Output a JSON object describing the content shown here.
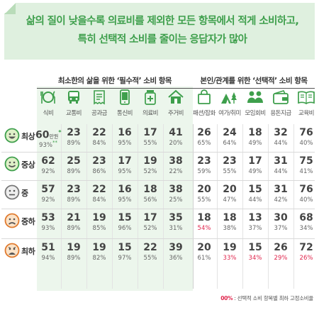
{
  "title": {
    "line1": "삶의 질이 낮을수록 의료비를 제외한 모든 항목에서 적게 소비하고,",
    "line2": "특히 선택적 소비를 줄이는 응답자가 많아"
  },
  "group_headers": {
    "essential": "최소한의 삶을 위한 ‘필수적’ 소비 항목",
    "optional": "본인/관계를 위한 ‘선택적’ 소비 항목"
  },
  "columns": [
    {
      "label": "식비",
      "icon": "food-icon"
    },
    {
      "label": "교통비",
      "icon": "bus-icon"
    },
    {
      "label": "공과금",
      "icon": "receipt-icon"
    },
    {
      "label": "통신비",
      "icon": "phone-icon"
    },
    {
      "label": "의료비",
      "icon": "medicine-icon"
    },
    {
      "label": "주거비",
      "icon": "house-icon"
    },
    {
      "label": "패션/잡화",
      "icon": "shopping-bag-icon"
    },
    {
      "label": "여가/취미",
      "icon": "camping-icon"
    },
    {
      "label": "모임회비",
      "icon": "people-icon"
    },
    {
      "label": "용돈지급",
      "icon": "wallet-icon"
    },
    {
      "label": "교육비",
      "icon": "book-icon"
    }
  ],
  "rows": [
    {
      "label": "최상",
      "face": "very-happy-face-icon",
      "values": [
        "60",
        "23",
        "22",
        "16",
        "17",
        "41",
        "26",
        "24",
        "18",
        "32",
        "76"
      ],
      "pcts": [
        "93%",
        "89%",
        "84%",
        "95%",
        "55%",
        "20%",
        "65%",
        "64%",
        "49%",
        "44%",
        "40%"
      ]
    },
    {
      "label": "중상",
      "face": "happy-face-icon",
      "values": [
        "62",
        "25",
        "23",
        "17",
        "19",
        "38",
        "23",
        "23",
        "17",
        "31",
        "75"
      ],
      "pcts": [
        "92%",
        "89%",
        "86%",
        "95%",
        "52%",
        "22%",
        "59%",
        "55%",
        "49%",
        "44%",
        "41%"
      ]
    },
    {
      "label": "중",
      "face": "neutral-face-icon",
      "values": [
        "57",
        "23",
        "22",
        "16",
        "18",
        "38",
        "20",
        "20",
        "15",
        "31",
        "76"
      ],
      "pcts": [
        "92%",
        "89%",
        "84%",
        "95%",
        "56%",
        "25%",
        "55%",
        "47%",
        "44%",
        "42%",
        "40%"
      ]
    },
    {
      "label": "중하",
      "face": "sad-face-icon",
      "values": [
        "53",
        "21",
        "19",
        "15",
        "17",
        "35",
        "18",
        "18",
        "13",
        "30",
        "68"
      ],
      "pcts": [
        "93%",
        "89%",
        "85%",
        "96%",
        "52%",
        "31%",
        "54%",
        "38%",
        "37%",
        "37%",
        "34%"
      ]
    },
    {
      "label": "최하",
      "face": "very-sad-face-icon",
      "values": [
        "51",
        "19",
        "19",
        "15",
        "22",
        "39",
        "20",
        "19",
        "15",
        "26",
        "72"
      ],
      "pcts": [
        "94%",
        "89%",
        "82%",
        "97%",
        "55%",
        "36%",
        "61%",
        "33%",
        "34%",
        "29%",
        "26%"
      ]
    }
  ],
  "annotations": {
    "unit": "만원",
    "first_value_marker": "*",
    "first_pct_marker": "**"
  },
  "footnote": {
    "key": "00%",
    "text": " : 선택적 소비 항목별 최하 고정소비율"
  },
  "colors": {
    "accent": "#3e9f4c",
    "banner_bg": "#dff0df",
    "essential_shade": "#ecf6ec",
    "highlight_red": "#e0264d"
  },
  "chart_data": {
    "type": "table",
    "title": "삶의 질이 낮을수록 의료비를 제외한 모든 항목에서 적게 소비하고, 특히 선택적 소비를 줄이는 응답자가 많아",
    "unit": "만원",
    "groups": [
      {
        "name": "최소한의 삶을 위한 ‘필수적’ 소비 항목",
        "categories": [
          "식비",
          "교통비",
          "공과금",
          "통신비",
          "의료비",
          "주거비"
        ]
      },
      {
        "name": "본인/관계를 위한 ‘선택적’ 소비 항목",
        "categories": [
          "패션/잡화",
          "여가/취미",
          "모임회비",
          "용돈지급",
          "교육비"
        ]
      }
    ],
    "categories": [
      "식비",
      "교통비",
      "공과금",
      "통신비",
      "의료비",
      "주거비",
      "패션/잡화",
      "여가/취미",
      "모임회비",
      "용돈지급",
      "교육비"
    ],
    "series": [
      {
        "name": "최상",
        "values": [
          60,
          23,
          22,
          16,
          17,
          41,
          26,
          24,
          18,
          32,
          76
        ],
        "percents": [
          93,
          89,
          84,
          95,
          55,
          20,
          65,
          64,
          49,
          44,
          40
        ]
      },
      {
        "name": "중상",
        "values": [
          62,
          25,
          23,
          17,
          19,
          38,
          23,
          23,
          17,
          31,
          75
        ],
        "percents": [
          92,
          89,
          86,
          95,
          52,
          22,
          59,
          55,
          49,
          44,
          41
        ]
      },
      {
        "name": "중",
        "values": [
          57,
          23,
          22,
          16,
          18,
          38,
          20,
          20,
          15,
          31,
          76
        ],
        "percents": [
          92,
          89,
          84,
          95,
          56,
          25,
          55,
          47,
          44,
          42,
          40
        ]
      },
      {
        "name": "중하",
        "values": [
          53,
          21,
          19,
          15,
          17,
          35,
          18,
          18,
          13,
          30,
          68
        ],
        "percents": [
          93,
          89,
          85,
          96,
          52,
          31,
          54,
          38,
          37,
          37,
          34
        ]
      },
      {
        "name": "최하",
        "values": [
          51,
          19,
          19,
          15,
          22,
          39,
          20,
          19,
          15,
          26,
          72
        ],
        "percents": [
          94,
          89,
          82,
          97,
          55,
          36,
          61,
          33,
          34,
          29,
          26
        ]
      }
    ],
    "highlighted_percents": [
      {
        "row": "중하",
        "category": "패션/잡화"
      },
      {
        "row": "최하",
        "category": "여가/취미"
      },
      {
        "row": "최하",
        "category": "모임회비"
      },
      {
        "row": "최하",
        "category": "용돈지급"
      },
      {
        "row": "최하",
        "category": "교육비"
      }
    ]
  }
}
